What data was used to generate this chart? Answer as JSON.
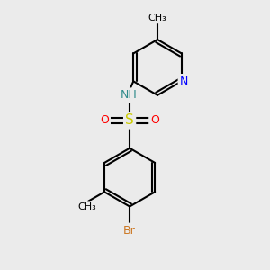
{
  "background_color": "#ebebeb",
  "bond_color": "#000000",
  "atom_colors": {
    "N": "#0000ff",
    "NH": "#2e8b8b",
    "S": "#cccc00",
    "O": "#ff0000",
    "Br": "#cc7722",
    "C": "#000000"
  },
  "bond_width": 1.5,
  "dbo": 0.1,
  "figsize": [
    3.0,
    3.0
  ],
  "dpi": 100
}
